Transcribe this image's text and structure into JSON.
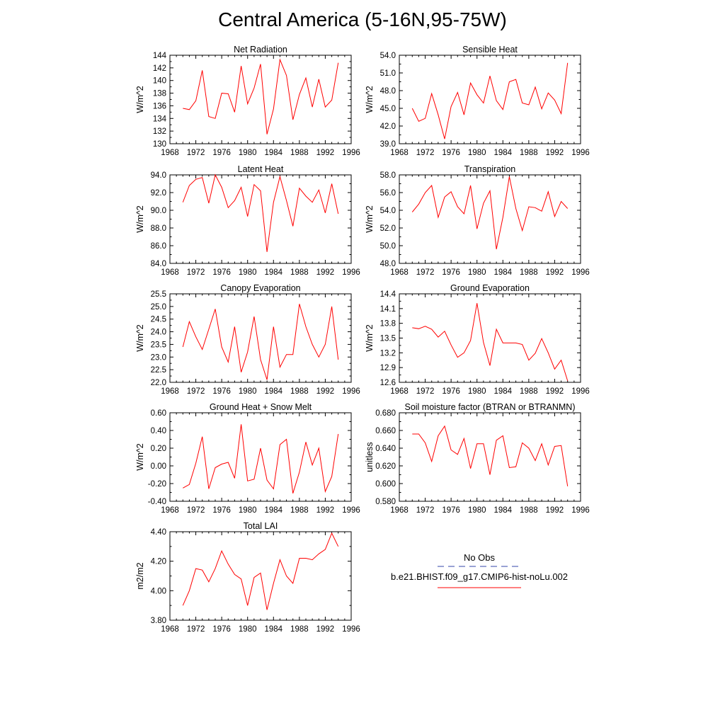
{
  "title": "Central America (5-16N,95-75W)",
  "legend": {
    "entries": [
      {
        "label": "No Obs",
        "color": "#3344aa",
        "dash": true
      },
      {
        "label": "b.e21.BHIST.f09_g17.CMIP6-hist-noLu.002",
        "color": "#ff0000",
        "dash": false
      }
    ]
  },
  "chart_data": [
    {
      "type": "line",
      "title": "Net Radiation",
      "ylabel": "W/m^2",
      "xlim": [
        1968,
        1996
      ],
      "ylim": [
        130,
        144
      ],
      "xticks": [
        "1968",
        "1972",
        "1976",
        "1980",
        "1984",
        "1988",
        "1992",
        "1996"
      ],
      "yticks": [
        "130",
        "132",
        "134",
        "136",
        "138",
        "140",
        "142",
        "144"
      ],
      "x": [
        1970,
        1971,
        1972,
        1973,
        1974,
        1975,
        1976,
        1977,
        1978,
        1979,
        1980,
        1981,
        1982,
        1983,
        1984,
        1985,
        1986,
        1987,
        1988,
        1989,
        1990,
        1991,
        1992,
        1993,
        1994
      ],
      "series": [
        {
          "color": "#ff0000",
          "values": [
            135.6,
            135.4,
            136.8,
            141.6,
            134.3,
            134.0,
            138.0,
            137.9,
            135.0,
            142.3,
            136.3,
            138.8,
            142.6,
            131.5,
            135.5,
            143.3,
            140.8,
            133.8,
            137.8,
            140.4,
            135.8,
            140.2,
            135.8,
            136.9,
            142.8
          ]
        }
      ]
    },
    {
      "type": "line",
      "title": "Sensible Heat",
      "ylabel": "W/m^2",
      "xlim": [
        1968,
        1996
      ],
      "ylim": [
        39.0,
        54.0
      ],
      "xticks": [
        "1968",
        "1972",
        "1976",
        "1980",
        "1984",
        "1988",
        "1992",
        "1996"
      ],
      "yticks": [
        "39.0",
        "42.0",
        "45.0",
        "48.0",
        "51.0",
        "54.0"
      ],
      "x": [
        1970,
        1971,
        1972,
        1973,
        1974,
        1975,
        1976,
        1977,
        1978,
        1979,
        1980,
        1981,
        1982,
        1983,
        1984,
        1985,
        1986,
        1987,
        1988,
        1989,
        1990,
        1991,
        1992,
        1993,
        1994
      ],
      "series": [
        {
          "color": "#ff0000",
          "values": [
            45.0,
            42.8,
            43.3,
            47.5,
            43.9,
            39.8,
            45.3,
            47.7,
            43.9,
            49.3,
            47.3,
            45.9,
            50.5,
            46.3,
            44.8,
            49.5,
            49.9,
            45.9,
            45.6,
            48.6,
            44.9,
            47.6,
            46.4,
            44.1,
            52.7
          ]
        }
      ]
    },
    {
      "type": "line",
      "title": "Latent Heat",
      "ylabel": "W/m^2",
      "xlim": [
        1968,
        1996
      ],
      "ylim": [
        84.0,
        94.0
      ],
      "xticks": [
        "1968",
        "1972",
        "1976",
        "1980",
        "1984",
        "1988",
        "1992",
        "1996"
      ],
      "yticks": [
        "84.0",
        "86.0",
        "88.0",
        "90.0",
        "92.0",
        "94.0"
      ],
      "x": [
        1970,
        1971,
        1972,
        1973,
        1974,
        1975,
        1976,
        1977,
        1978,
        1979,
        1980,
        1981,
        1982,
        1983,
        1984,
        1985,
        1986,
        1987,
        1988,
        1989,
        1990,
        1991,
        1992,
        1993,
        1994
      ],
      "series": [
        {
          "color": "#ff0000",
          "values": [
            90.9,
            92.8,
            93.5,
            93.7,
            90.8,
            94.0,
            92.6,
            90.3,
            91.1,
            92.6,
            89.3,
            92.9,
            92.2,
            85.3,
            90.9,
            93.8,
            91.1,
            88.2,
            92.5,
            91.6,
            90.9,
            92.3,
            89.7,
            93.0,
            89.6
          ]
        }
      ]
    },
    {
      "type": "line",
      "title": "Transpiration",
      "ylabel": "W/m^2",
      "xlim": [
        1968,
        1996
      ],
      "ylim": [
        48.0,
        58.0
      ],
      "xticks": [
        "1968",
        "1972",
        "1976",
        "1980",
        "1984",
        "1988",
        "1992",
        "1996"
      ],
      "yticks": [
        "48.0",
        "50.0",
        "52.0",
        "54.0",
        "56.0",
        "58.0"
      ],
      "x": [
        1970,
        1971,
        1972,
        1973,
        1974,
        1975,
        1976,
        1977,
        1978,
        1979,
        1980,
        1981,
        1982,
        1983,
        1984,
        1985,
        1986,
        1987,
        1988,
        1989,
        1990,
        1991,
        1992,
        1993,
        1994
      ],
      "series": [
        {
          "color": "#ff0000",
          "values": [
            53.8,
            54.7,
            56.0,
            56.8,
            53.2,
            55.5,
            56.1,
            54.4,
            53.6,
            56.8,
            51.9,
            54.8,
            56.2,
            49.6,
            53.2,
            57.8,
            54.2,
            51.7,
            54.4,
            54.3,
            53.9,
            56.1,
            53.3,
            55.0,
            54.2
          ]
        }
      ]
    },
    {
      "type": "line",
      "title": "Canopy Evaporation",
      "ylabel": "W/m^2",
      "xlim": [
        1968,
        1996
      ],
      "ylim": [
        22.0,
        25.5
      ],
      "xticks": [
        "1968",
        "1972",
        "1976",
        "1980",
        "1984",
        "1988",
        "1992",
        "1996"
      ],
      "yticks": [
        "22.0",
        "22.5",
        "23.0",
        "23.5",
        "24.0",
        "24.5",
        "25.0",
        "25.5"
      ],
      "x": [
        1970,
        1971,
        1972,
        1973,
        1974,
        1975,
        1976,
        1977,
        1978,
        1979,
        1980,
        1981,
        1982,
        1983,
        1984,
        1985,
        1986,
        1987,
        1988,
        1989,
        1990,
        1991,
        1992,
        1993,
        1994
      ],
      "series": [
        {
          "color": "#ff0000",
          "values": [
            23.4,
            24.4,
            23.8,
            23.3,
            24.1,
            24.9,
            23.4,
            22.8,
            24.2,
            22.4,
            23.2,
            24.6,
            22.9,
            22.1,
            24.2,
            22.6,
            23.1,
            23.1,
            25.1,
            24.2,
            23.5,
            23.0,
            23.5,
            25.0,
            22.9
          ]
        }
      ]
    },
    {
      "type": "line",
      "title": "Ground Evaporation",
      "ylabel": "W/m^2",
      "xlim": [
        1968,
        1996
      ],
      "ylim": [
        12.6,
        14.4
      ],
      "xticks": [
        "1968",
        "1972",
        "1976",
        "1980",
        "1984",
        "1988",
        "1992",
        "1996"
      ],
      "yticks": [
        "12.6",
        "12.9",
        "13.2",
        "13.5",
        "13.8",
        "14.1",
        "14.4"
      ],
      "x": [
        1970,
        1971,
        1972,
        1973,
        1974,
        1975,
        1976,
        1977,
        1978,
        1979,
        1980,
        1981,
        1982,
        1983,
        1984,
        1985,
        1986,
        1987,
        1988,
        1989,
        1990,
        1991,
        1992,
        1993,
        1994
      ],
      "series": [
        {
          "color": "#ff0000",
          "values": [
            13.71,
            13.69,
            13.74,
            13.68,
            13.52,
            13.64,
            13.36,
            13.11,
            13.2,
            13.45,
            14.21,
            13.41,
            12.94,
            13.68,
            13.4,
            13.4,
            13.4,
            13.37,
            13.05,
            13.19,
            13.49,
            13.2,
            12.87,
            13.05,
            12.63
          ]
        }
      ]
    },
    {
      "type": "line",
      "title": "Ground Heat + Snow Melt",
      "ylabel": "W/m^2",
      "xlim": [
        1968,
        1996
      ],
      "ylim": [
        -0.4,
        0.6
      ],
      "xticks": [
        "1968",
        "1972",
        "1976",
        "1980",
        "1984",
        "1988",
        "1992",
        "1996"
      ],
      "yticks": [
        "-0.40",
        "-0.20",
        "0.00",
        "0.20",
        "0.40",
        "0.60"
      ],
      "x": [
        1970,
        1971,
        1972,
        1973,
        1974,
        1975,
        1976,
        1977,
        1978,
        1979,
        1980,
        1981,
        1982,
        1983,
        1984,
        1985,
        1986,
        1987,
        1988,
        1989,
        1990,
        1991,
        1992,
        1993,
        1994
      ],
      "series": [
        {
          "color": "#ff0000",
          "values": [
            -0.25,
            -0.21,
            0.03,
            0.33,
            -0.26,
            -0.02,
            0.02,
            0.04,
            -0.14,
            0.47,
            -0.17,
            -0.15,
            0.2,
            -0.16,
            -0.26,
            0.24,
            0.3,
            -0.31,
            -0.07,
            0.27,
            0.01,
            0.2,
            -0.29,
            -0.12,
            0.36
          ]
        }
      ]
    },
    {
      "type": "line",
      "title": "Soil moisture factor (BTRAN or BTRANMN)",
      "ylabel": "unitless",
      "xlim": [
        1968,
        1996
      ],
      "ylim": [
        0.58,
        0.68
      ],
      "xticks": [
        "1968",
        "1972",
        "1976",
        "1980",
        "1984",
        "1988",
        "1992",
        "1996"
      ],
      "yticks": [
        "0.580",
        "0.600",
        "0.620",
        "0.640",
        "0.660",
        "0.680"
      ],
      "x": [
        1970,
        1971,
        1972,
        1973,
        1974,
        1975,
        1976,
        1977,
        1978,
        1979,
        1980,
        1981,
        1982,
        1983,
        1984,
        1985,
        1986,
        1987,
        1988,
        1989,
        1990,
        1991,
        1992,
        1993,
        1994
      ],
      "series": [
        {
          "color": "#ff0000",
          "values": [
            0.656,
            0.656,
            0.646,
            0.625,
            0.654,
            0.665,
            0.638,
            0.633,
            0.651,
            0.617,
            0.645,
            0.645,
            0.61,
            0.649,
            0.654,
            0.618,
            0.619,
            0.646,
            0.64,
            0.626,
            0.645,
            0.621,
            0.642,
            0.643,
            0.597
          ]
        }
      ]
    },
    {
      "type": "line",
      "title": "Total LAI",
      "ylabel": "m2/m2",
      "xlim": [
        1968,
        1996
      ],
      "ylim": [
        3.8,
        4.4
      ],
      "xticks": [
        "1968",
        "1972",
        "1976",
        "1980",
        "1984",
        "1988",
        "1992",
        "1996"
      ],
      "yticks": [
        "3.80",
        "4.00",
        "4.20",
        "4.40"
      ],
      "x": [
        1970,
        1971,
        1972,
        1973,
        1974,
        1975,
        1976,
        1977,
        1978,
        1979,
        1980,
        1981,
        1982,
        1983,
        1984,
        1985,
        1986,
        1987,
        1988,
        1989,
        1990,
        1991,
        1992,
        1993,
        1994
      ],
      "series": [
        {
          "color": "#ff0000",
          "values": [
            3.9,
            4.0,
            4.15,
            4.14,
            4.06,
            4.15,
            4.27,
            4.18,
            4.11,
            4.08,
            3.9,
            4.09,
            4.12,
            3.87,
            4.05,
            4.21,
            4.1,
            4.05,
            4.22,
            4.22,
            4.21,
            4.25,
            4.28,
            4.39,
            4.3
          ]
        }
      ]
    }
  ]
}
